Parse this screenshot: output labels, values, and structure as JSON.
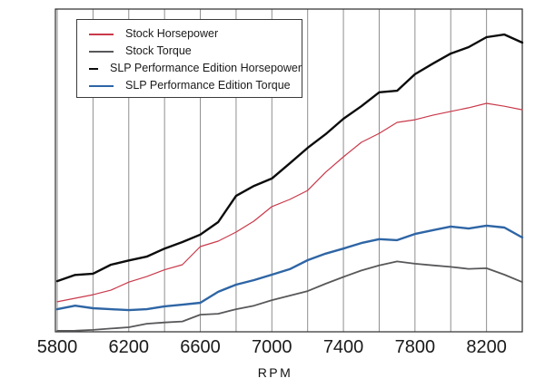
{
  "figure": {
    "background": "#ffffff",
    "y_axis_note": "no y-axis ticks, labels, or scale shown in the image"
  },
  "chart_data": {
    "type": "line",
    "title": "",
    "xlabel": "RPM",
    "ylabel": "",
    "xlim": [
      5800,
      8400
    ],
    "x_gridline_step": 200,
    "grid": "vertical-only",
    "legend_position": "top-left",
    "x_ticks_labeled": [
      5800,
      6200,
      6600,
      7000,
      7400,
      7800,
      8200
    ],
    "x_tick_labels": [
      "5800",
      "6200",
      "6600",
      "7000",
      "7400",
      "7800",
      "8200"
    ],
    "x": [
      5800,
      5900,
      6000,
      6100,
      6200,
      6300,
      6400,
      6500,
      6600,
      6700,
      6800,
      6900,
      7000,
      7100,
      7200,
      7300,
      7400,
      7500,
      7600,
      7700,
      7800,
      7900,
      8000,
      8100,
      8200,
      8300,
      8400
    ],
    "y_units": "percent of plot height (y-axis unlabeled in source image)",
    "series": [
      {
        "name": "Stock Horsepower",
        "color": "#c9394a",
        "line_width": 1.2,
        "values": [
          9.3,
          10.4,
          11.5,
          12.9,
          15.4,
          17.1,
          19.2,
          20.8,
          26.4,
          28.1,
          30.9,
          34.3,
          38.8,
          41.0,
          43.8,
          49.4,
          54.2,
          58.7,
          61.5,
          64.9,
          65.7,
          67.1,
          68.3,
          69.4,
          70.8,
          69.9,
          68.8
        ]
      },
      {
        "name": "Stock Torque",
        "color": "#58585a",
        "line_width": 1.8,
        "values": [
          0.3,
          0.35,
          0.6,
          1.0,
          1.4,
          2.5,
          2.9,
          3.2,
          5.3,
          5.6,
          7.0,
          8.1,
          9.8,
          11.2,
          12.6,
          14.9,
          17.0,
          19.0,
          20.6,
          21.8,
          21.1,
          20.6,
          20.1,
          19.5,
          19.7,
          17.7,
          15.4
        ]
      },
      {
        "name": "SLP Performance Edition Horsepower",
        "color": "#0c0c0c",
        "line_width": 2.4,
        "values": [
          15.7,
          17.6,
          18.0,
          20.8,
          22.1,
          23.3,
          25.8,
          27.8,
          30.1,
          34.0,
          42.1,
          45.2,
          47.5,
          52.2,
          57.0,
          61.2,
          66.0,
          69.9,
          74.2,
          74.7,
          79.8,
          83.1,
          86.2,
          88.2,
          91.3,
          92.1,
          89.6
        ]
      },
      {
        "name": "SLP Performance Edition Torque",
        "color": "#2e65a5",
        "line_width": 2.4,
        "values": [
          7.0,
          8.1,
          7.3,
          7.0,
          6.7,
          7.0,
          7.9,
          8.4,
          9.0,
          12.4,
          14.6,
          16.0,
          17.7,
          19.4,
          22.2,
          24.2,
          25.8,
          27.5,
          28.7,
          28.4,
          30.3,
          31.5,
          32.6,
          32.0,
          32.9,
          32.3,
          29.2
        ]
      }
    ],
    "colors": {
      "gridline": "#8f8f8f",
      "plot_border": "#2b2b2b",
      "tick_label": "#1a1a1a"
    }
  }
}
